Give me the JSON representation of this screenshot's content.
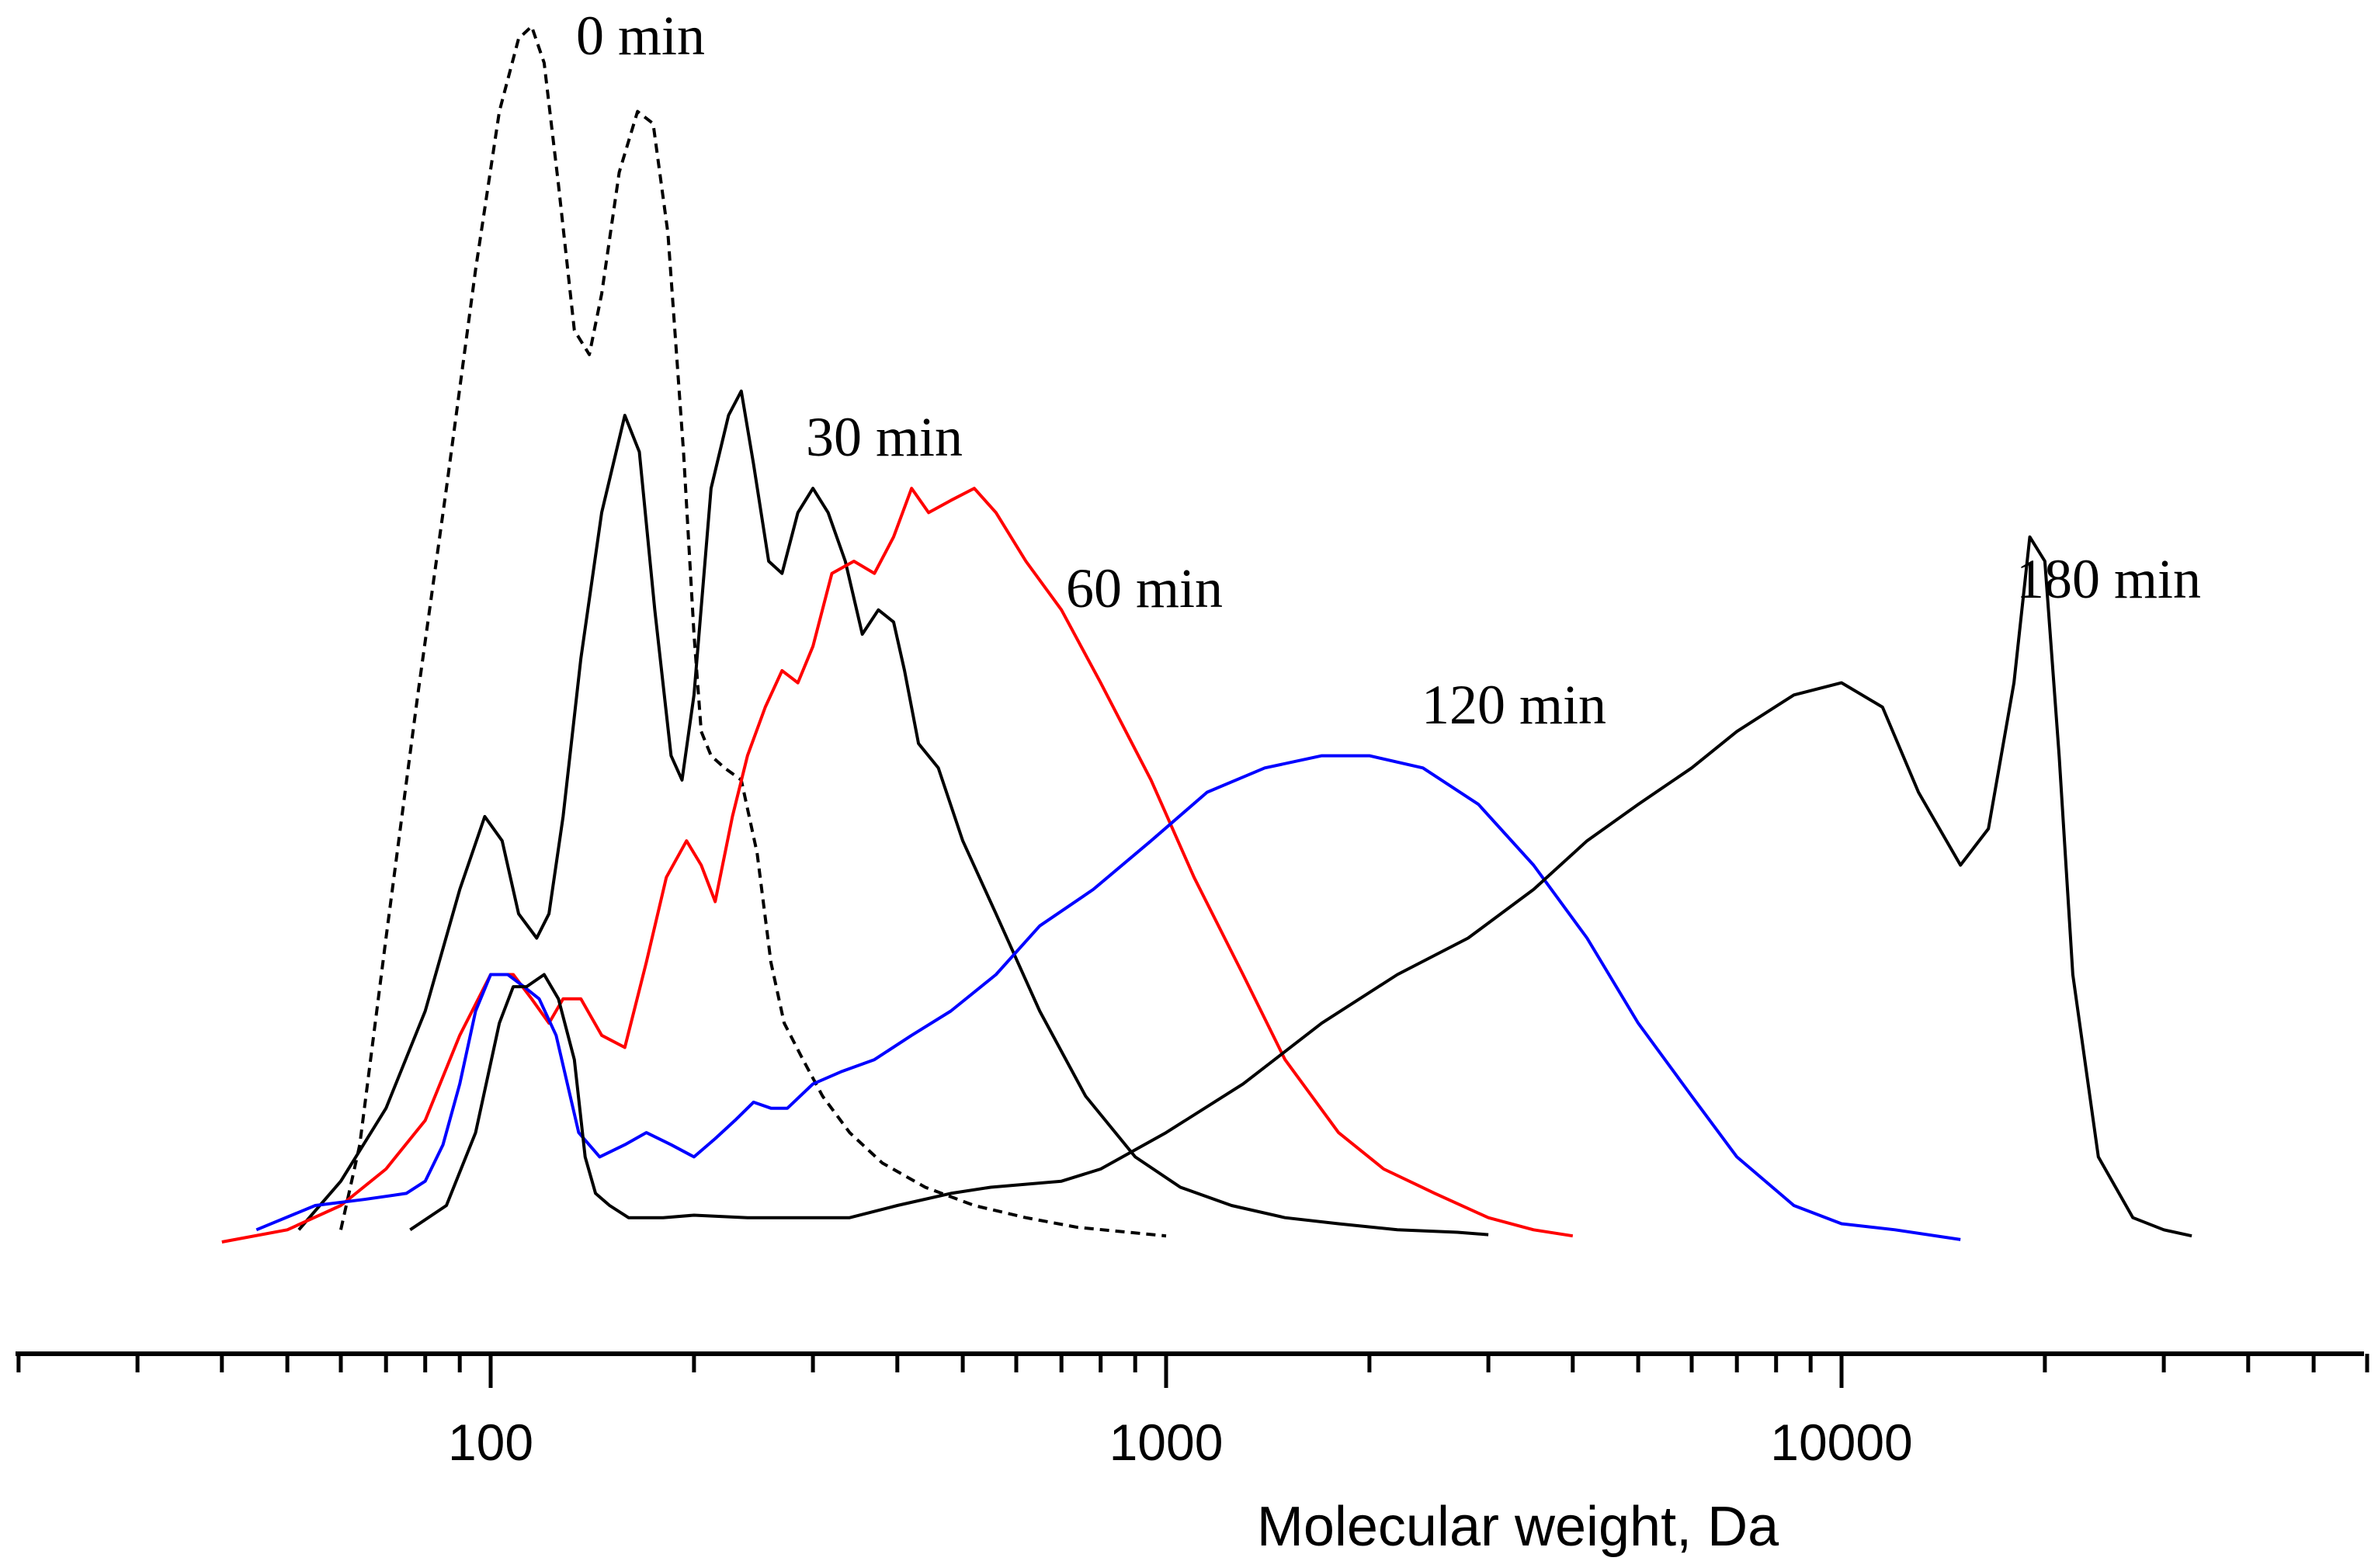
{
  "chart_data": {
    "type": "line",
    "title": "",
    "xlabel": "Molecular weight, Da",
    "ylabel": "",
    "xscale": "log",
    "xlim": [
      20,
      60000
    ],
    "ylim": [
      0,
      1
    ],
    "x_ticks": [
      100,
      1000,
      10000
    ],
    "x_tick_labels": [
      "100",
      "1000",
      "10000"
    ],
    "y_axis_visible": false,
    "grid": false,
    "legend": "none",
    "series": [
      {
        "name": "0 min",
        "label": "0 min",
        "color": "#000000",
        "style": "dashed",
        "x": [
          60,
          64,
          70,
          78,
          86,
          95,
          103,
          110,
          115,
          120,
          126,
          133,
          140,
          146,
          155,
          165,
          174,
          183,
          193,
          200,
          205,
          212,
          222,
          235,
          248,
          260,
          272,
          290,
          310,
          340,
          380,
          440,
          520,
          620,
          740,
          880,
          1000
        ],
        "y": [
          0.01,
          0.08,
          0.25,
          0.45,
          0.62,
          0.8,
          0.93,
          0.99,
          1.0,
          0.97,
          0.87,
          0.75,
          0.73,
          0.78,
          0.88,
          0.93,
          0.92,
          0.83,
          0.65,
          0.5,
          0.42,
          0.4,
          0.39,
          0.38,
          0.32,
          0.23,
          0.18,
          0.15,
          0.12,
          0.09,
          0.065,
          0.045,
          0.03,
          0.02,
          0.012,
          0.008,
          0.005
        ]
      },
      {
        "name": "30 min",
        "label": "30 min",
        "color": "#000000",
        "style": "solid",
        "x": [
          52,
          60,
          70,
          80,
          90,
          98,
          104,
          110,
          117,
          122,
          128,
          136,
          146,
          158,
          166,
          175,
          185,
          192,
          200,
          212,
          225,
          235,
          245,
          258,
          270,
          285,
          300,
          316,
          335,
          355,
          375,
          395,
          410,
          430,
          460,
          500,
          560,
          650,
          760,
          900,
          1050,
          1250,
          1500,
          1800,
          2200,
          2700,
          3000
        ],
        "y": [
          0.01,
          0.05,
          0.11,
          0.19,
          0.29,
          0.35,
          0.33,
          0.27,
          0.25,
          0.27,
          0.35,
          0.48,
          0.6,
          0.68,
          0.65,
          0.52,
          0.4,
          0.38,
          0.45,
          0.62,
          0.68,
          0.7,
          0.64,
          0.56,
          0.55,
          0.6,
          0.62,
          0.6,
          0.56,
          0.5,
          0.52,
          0.51,
          0.47,
          0.41,
          0.39,
          0.33,
          0.27,
          0.19,
          0.12,
          0.07,
          0.045,
          0.03,
          0.02,
          0.015,
          0.01,
          0.008,
          0.006
        ]
      },
      {
        "name": "60 min",
        "label": "60 min",
        "color": "#ff0000",
        "style": "solid",
        "x": [
          40,
          50,
          60,
          70,
          80,
          90,
          100,
          108,
          115,
          122,
          128,
          136,
          146,
          158,
          170,
          182,
          195,
          205,
          215,
          228,
          240,
          255,
          270,
          285,
          300,
          320,
          345,
          370,
          395,
          420,
          445,
          480,
          520,
          560,
          620,
          700,
          800,
          950,
          1100,
          1300,
          1500,
          1800,
          2100,
          2500,
          3000,
          3500,
          4000
        ],
        "y": [
          0.0,
          0.01,
          0.03,
          0.06,
          0.1,
          0.17,
          0.22,
          0.22,
          0.2,
          0.18,
          0.2,
          0.2,
          0.17,
          0.16,
          0.23,
          0.3,
          0.33,
          0.31,
          0.28,
          0.35,
          0.4,
          0.44,
          0.47,
          0.46,
          0.49,
          0.55,
          0.56,
          0.55,
          0.58,
          0.62,
          0.6,
          0.61,
          0.62,
          0.6,
          0.56,
          0.52,
          0.46,
          0.38,
          0.3,
          0.22,
          0.15,
          0.09,
          0.06,
          0.04,
          0.02,
          0.01,
          0.005
        ]
      },
      {
        "name": "120 min",
        "label": "120 min",
        "color": "#0000ff",
        "style": "solid",
        "x": [
          45,
          55,
          65,
          75,
          80,
          85,
          90,
          95,
          100,
          106,
          112,
          118,
          125,
          135,
          145,
          158,
          170,
          185,
          200,
          215,
          230,
          245,
          260,
          275,
          300,
          330,
          370,
          420,
          480,
          560,
          650,
          780,
          950,
          1150,
          1400,
          1700,
          2000,
          2400,
          2900,
          3500,
          4200,
          5000,
          6000,
          7000,
          8500,
          10000,
          12000,
          15000
        ],
        "y": [
          0.01,
          0.03,
          0.035,
          0.04,
          0.05,
          0.08,
          0.13,
          0.19,
          0.22,
          0.22,
          0.21,
          0.2,
          0.17,
          0.09,
          0.07,
          0.08,
          0.09,
          0.08,
          0.07,
          0.085,
          0.1,
          0.115,
          0.11,
          0.11,
          0.13,
          0.14,
          0.15,
          0.17,
          0.19,
          0.22,
          0.26,
          0.29,
          0.33,
          0.37,
          0.39,
          0.4,
          0.4,
          0.39,
          0.36,
          0.31,
          0.25,
          0.18,
          0.12,
          0.07,
          0.03,
          0.015,
          0.01,
          0.002
        ]
      },
      {
        "name": "180 min",
        "label": "180 min",
        "color": "#000000",
        "style": "solid",
        "x": [
          76,
          86,
          95,
          103,
          108,
          113,
          120,
          126,
          133,
          138,
          143,
          150,
          160,
          180,
          200,
          240,
          280,
          340,
          400,
          480,
          550,
          700,
          800,
          1000,
          1300,
          1700,
          2200,
          2800,
          3500,
          4200,
          5000,
          6000,
          7000,
          8500,
          10000,
          11500,
          13000,
          15000,
          16500,
          18000,
          19000,
          20000,
          21000,
          22000,
          24000,
          27000,
          30000,
          33000
        ],
        "y": [
          0.01,
          0.03,
          0.09,
          0.18,
          0.21,
          0.21,
          0.22,
          0.2,
          0.15,
          0.07,
          0.04,
          0.03,
          0.02,
          0.02,
          0.022,
          0.02,
          0.02,
          0.02,
          0.03,
          0.04,
          0.045,
          0.05,
          0.06,
          0.09,
          0.13,
          0.18,
          0.22,
          0.25,
          0.29,
          0.33,
          0.36,
          0.39,
          0.42,
          0.45,
          0.46,
          0.44,
          0.37,
          0.31,
          0.34,
          0.46,
          0.58,
          0.56,
          0.4,
          0.22,
          0.07,
          0.02,
          0.01,
          0.005
        ]
      }
    ],
    "annotations": [
      {
        "text": "0 min",
        "series": "0 min"
      },
      {
        "text": "30 min",
        "series": "30 min"
      },
      {
        "text": "60 min",
        "series": "60 min"
      },
      {
        "text": "120 min",
        "series": "120 min"
      },
      {
        "text": "180 min",
        "series": "180 min"
      }
    ]
  }
}
